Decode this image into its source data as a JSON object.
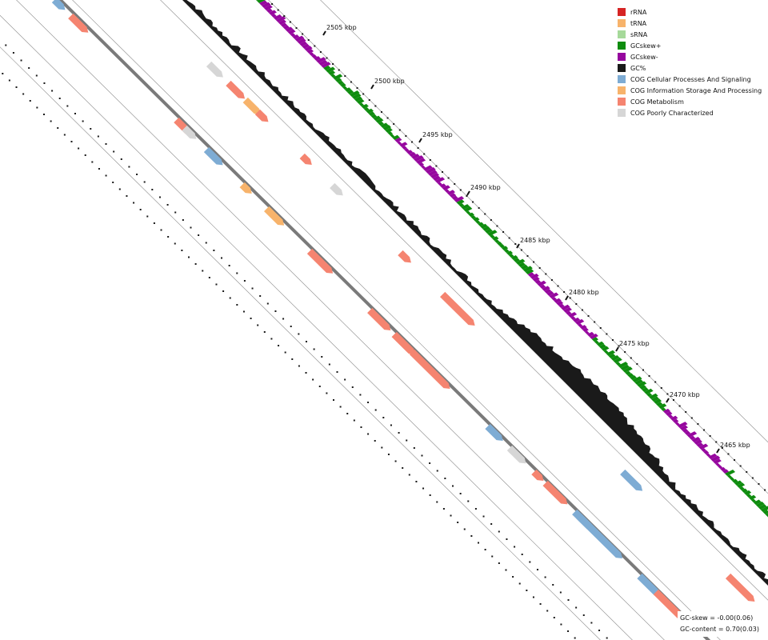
{
  "legend": {
    "items": [
      {
        "label": "rRNA",
        "color": "#d62424"
      },
      {
        "label": "tRNA",
        "color": "#f7b36b"
      },
      {
        "label": "sRNA",
        "color": "#a6d99a"
      },
      {
        "label": "GCskew+",
        "color": "#0e8c0e"
      },
      {
        "label": "GCskew-",
        "color": "#96079e"
      },
      {
        "label": "GC%",
        "color": "#1a1a1a"
      },
      {
        "label": "COG Cellular Processes And Signaling",
        "color": "#7eacd4"
      },
      {
        "label": "COG Information Storage And Processing",
        "color": "#f7b36b"
      },
      {
        "label": "COG Metabolism",
        "color": "#f58470"
      },
      {
        "label": "COG Poorly Characterized",
        "color": "#d6d6d6"
      }
    ]
  },
  "ticks": [
    "2505 kbp",
    "2500 kbp",
    "2495 kbp",
    "2490 kbp",
    "2485 kbp",
    "2480 kbp",
    "2475 kbp",
    "2470 kbp",
    "2465 kbp"
  ],
  "stats": {
    "gc_skew": "GC-skew = -0.00(0.06)",
    "gc_content": "GC-content = 0.70(0.03)"
  }
}
